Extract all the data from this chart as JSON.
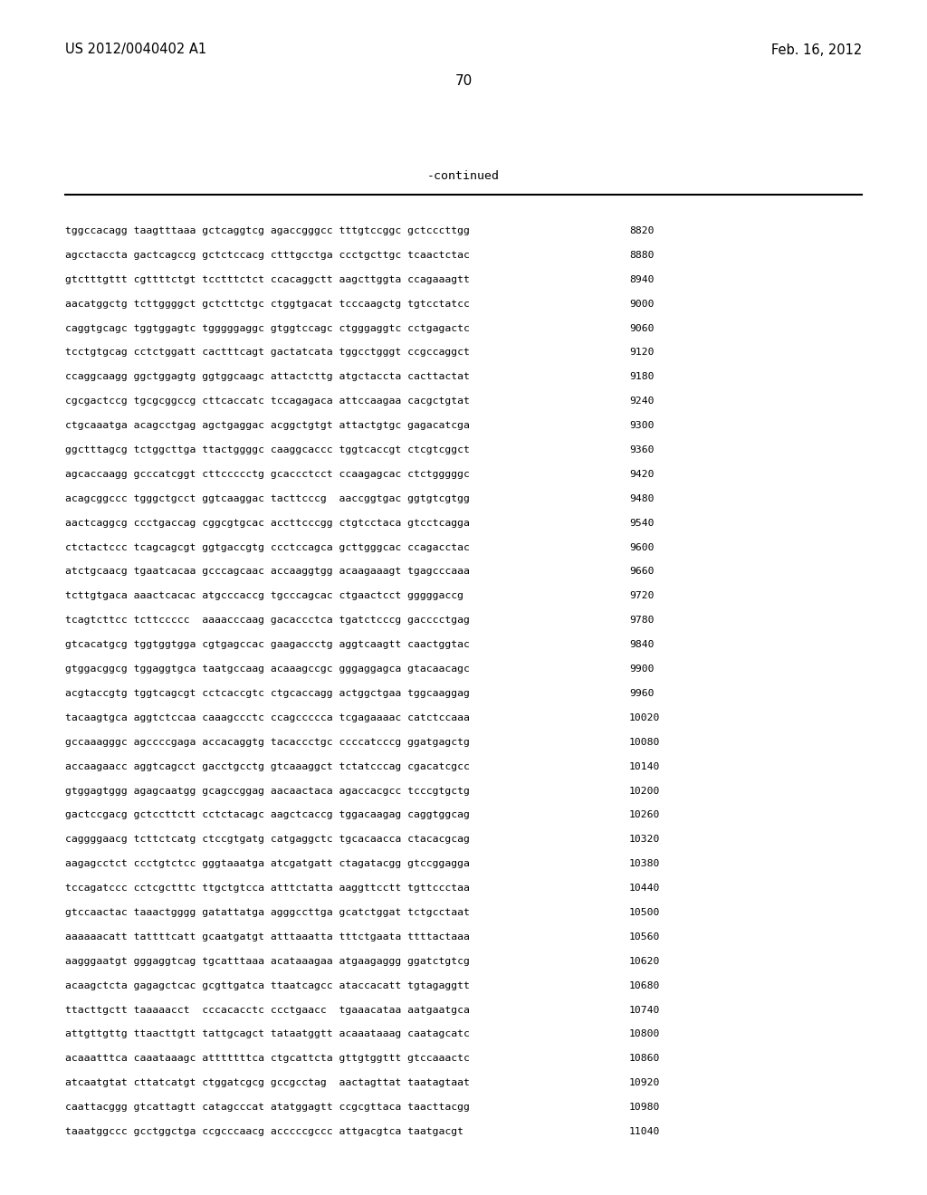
{
  "header_left": "US 2012/0040402 A1",
  "header_right": "Feb. 16, 2012",
  "page_number": "70",
  "continued_label": "-continued",
  "background_color": "#ffffff",
  "text_color": "#000000",
  "sequences": [
    {
      "seq": "tggccacagg taagtttaaa gctcaggtcg agaccgggcc tttgtccggc gctcccttgg",
      "num": "8820"
    },
    {
      "seq": "agcctaccta gactcagccg gctctccacg ctttgcctga ccctgcttgc tcaactctac",
      "num": "8880"
    },
    {
      "seq": "gtctttgttt cgttttctgt tcctttctct ccacaggctt aagcttggta ccagaaagtt",
      "num": "8940"
    },
    {
      "seq": "aacatggctg tcttggggct gctcttctgc ctggtgacat tcccaagctg tgtcctatcc",
      "num": "9000"
    },
    {
      "seq": "caggtgcagc tggtggagtc tgggggaggc gtggtccagc ctgggaggtc cctgagactc",
      "num": "9060"
    },
    {
      "seq": "tcctgtgcag cctctggatt cactttcagt gactatcata tggcctgggt ccgccaggct",
      "num": "9120"
    },
    {
      "seq": "ccaggcaagg ggctggagtg ggtggcaagc attactcttg atgctaccta cacttactat",
      "num": "9180"
    },
    {
      "seq": "cgcgactccg tgcgcggccg cttcaccatc tccagagaca attccaagaa cacgctgtat",
      "num": "9240"
    },
    {
      "seq": "ctgcaaatga acagcctgag agctgaggac acggctgtgt attactgtgc gagacatcga",
      "num": "9300"
    },
    {
      "seq": "ggctttagcg tctggcttga ttactggggc caaggcaccc tggtcaccgt ctcgtcggct",
      "num": "9360"
    },
    {
      "seq": "agcaccaagg gcccatcggt cttccccctg gcaccctcct ccaagagcac ctctgggggc",
      "num": "9420"
    },
    {
      "seq": "acagcggccc tgggctgcct ggtcaaggac tacttcccg  aaccggtgac ggtgtcgtgg",
      "num": "9480"
    },
    {
      "seq": "aactcaggcg ccctgaccag cggcgtgcac accttcccgg ctgtcctaca gtcctcagga",
      "num": "9540"
    },
    {
      "seq": "ctctactccc tcagcagcgt ggtgaccgtg ccctccagca gcttgggcac ccagacctac",
      "num": "9600"
    },
    {
      "seq": "atctgcaacg tgaatcacaa gcccagcaac accaaggtgg acaagaaagt tgagcccaaa",
      "num": "9660"
    },
    {
      "seq": "tcttgtgaca aaactcacac atgcccaccg tgcccagcac ctgaactcct gggggaccg",
      "num": "9720"
    },
    {
      "seq": "tcagtcttcc tcttccccc  aaaacccaag gacaccctca tgatctcccg gacccctgag",
      "num": "9780"
    },
    {
      "seq": "gtcacatgcg tggtggtgga cgtgagccac gaagaccctg aggtcaagtt caactggtac",
      "num": "9840"
    },
    {
      "seq": "gtggacggcg tggaggtgca taatgccaag acaaagccgc gggaggagca gtacaacagc",
      "num": "9900"
    },
    {
      "seq": "acgtaccgtg tggtcagcgt cctcaccgtc ctgcaccagg actggctgaa tggcaaggag",
      "num": "9960"
    },
    {
      "seq": "tacaagtgca aggtctccaa caaagccctc ccagccccca tcgagaaaac catctccaaa",
      "num": "10020"
    },
    {
      "seq": "gccaaagggc agccccgaga accacaggtg tacaccctgc ccccatcccg ggatgagctg",
      "num": "10080"
    },
    {
      "seq": "accaagaacc aggtcagcct gacctgcctg gtcaaaggct tctatcccag cgacatcgcc",
      "num": "10140"
    },
    {
      "seq": "gtggagtggg agagcaatgg gcagccggag aacaactaca agaccacgcc tcccgtgctg",
      "num": "10200"
    },
    {
      "seq": "gactccgacg gctccttctt cctctacagc aagctcaccg tggacaagag caggtggcag",
      "num": "10260"
    },
    {
      "seq": "caggggaacg tcttctcatg ctccgtgatg catgaggctc tgcacaacca ctacacgcag",
      "num": "10320"
    },
    {
      "seq": "aagagcctct ccctgtctcc gggtaaatga atcgatgatt ctagatacgg gtccggagga",
      "num": "10380"
    },
    {
      "seq": "tccagatccc cctcgctttc ttgctgtcca atttctatta aaggttcctt tgttccctaa",
      "num": "10440"
    },
    {
      "seq": "gtccaactac taaactgggg gatattatga agggccttga gcatctggat tctgcctaat",
      "num": "10500"
    },
    {
      "seq": "aaaaaacatt tattttcatt gcaatgatgt atttaaatta tttctgaata ttttactaaa",
      "num": "10560"
    },
    {
      "seq": "aagggaatgt gggaggtcag tgcatttaaa acataaagaa atgaagaggg ggatctgtcg",
      "num": "10620"
    },
    {
      "seq": "acaagctcta gagagctcac gcgttgatca ttaatcagcc ataccacatt tgtagaggtt",
      "num": "10680"
    },
    {
      "seq": "ttacttgctt taaaaacct  cccacacctc ccctgaacc  tgaaacataa aatgaatgca",
      "num": "10740"
    },
    {
      "seq": "attgttgttg ttaacttgtt tattgcagct tataatggtt acaaataaag caatagcatc",
      "num": "10800"
    },
    {
      "seq": "acaaatttca caaataaagc atttttttca ctgcattcta gttgtggttt gtccaaactc",
      "num": "10860"
    },
    {
      "seq": "atcaatgtat cttatcatgt ctggatcgcg gccgcctag  aactagttat taatagtaat",
      "num": "10920"
    },
    {
      "seq": "caattacggg gtcattagtt catagcccat atatggagtt ccgcgttaca taacttacgg",
      "num": "10980"
    },
    {
      "seq": "taaatggccc gcctggctga ccgcccaacg acccccgccc attgacgtca taatgacgt",
      "num": "11040"
    }
  ]
}
